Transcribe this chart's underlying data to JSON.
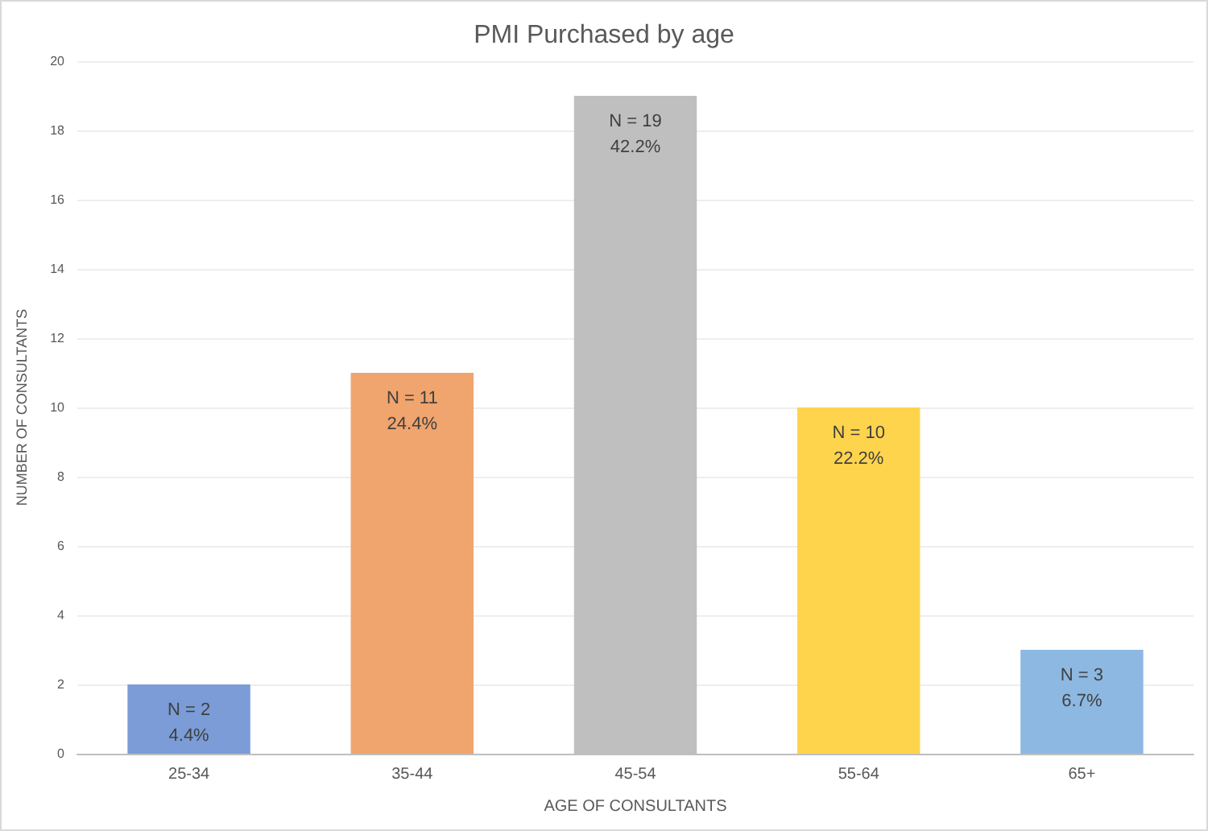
{
  "chart_data": {
    "type": "bar",
    "title": "PMI Purchased by age",
    "xlabel": "AGE OF CONSULTANTS",
    "ylabel": "NUMBER OF CONSULTANTS",
    "categories": [
      "25-34",
      "35-44",
      "45-54",
      "55-64",
      "65+"
    ],
    "values": [
      2,
      11,
      19,
      10,
      3
    ],
    "colors": [
      "#7b9cd6",
      "#f0a46e",
      "#bfbfbf",
      "#ffd44d",
      "#8cb8e2"
    ],
    "value_labels": [
      "N = 2\n4.4%",
      "N = 11\n24.4%",
      "N = 19\n42.2%",
      "N = 10\n22.2%",
      "N = 3\n6.7%"
    ],
    "ylim": [
      0,
      20
    ],
    "yticks": [
      0,
      2,
      4,
      6,
      8,
      10,
      12,
      14,
      16,
      18,
      20
    ],
    "grid": "y"
  }
}
